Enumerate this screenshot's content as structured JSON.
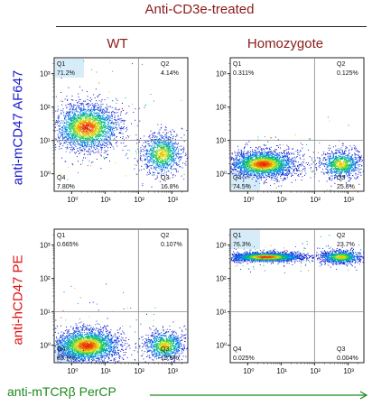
{
  "header": {
    "treatment": "Anti-CD3e-treated",
    "col_left": "WT",
    "col_right": "Homozygote"
  },
  "axis_labels": {
    "y_top": "anti-mCD47 AF647",
    "y_bottom": "anti-hCD47 PE",
    "x": "anti-mTCRβ PerCP"
  },
  "colors": {
    "title": "#8b1a1a",
    "y_top": "#1a1acc",
    "y_bottom": "#e01010",
    "x": "#1e8a1e",
    "arrow": "#1e8a1e",
    "highlight": "#d6ecf8"
  },
  "chart_data": [
    {
      "type": "scatter",
      "panel": "top-left",
      "quadrants": [
        {
          "name": "Q1",
          "value": "71.2%"
        },
        {
          "name": "Q2",
          "value": "4.14%"
        },
        {
          "name": "Q3",
          "value": "16.8%"
        },
        {
          "name": "Q4",
          "value": "7.80%"
        }
      ],
      "gate": {
        "x": 100,
        "y": 10
      },
      "highlighted_quadrant": "Q1",
      "x_ticks": [
        "10⁰",
        "10¹",
        "10²",
        "10³"
      ],
      "y_ticks": [
        "10⁰",
        "10¹",
        "10²",
        "10³"
      ],
      "x_range": [
        0.3,
        3000
      ],
      "y_range": [
        0.3,
        3000
      ],
      "scale": "log",
      "populations": [
        {
          "cx": 2.8,
          "cy": 25,
          "sx": 0.48,
          "sy": 0.34,
          "n": 2600
        },
        {
          "cx": 500,
          "cy": 4,
          "sx": 0.3,
          "sy": 0.3,
          "n": 1100
        }
      ]
    },
    {
      "type": "scatter",
      "panel": "top-right",
      "quadrants": [
        {
          "name": "Q1",
          "value": "0.311%"
        },
        {
          "name": "Q2",
          "value": "0.125%"
        },
        {
          "name": "Q3",
          "value": "25.0%"
        },
        {
          "name": "Q4",
          "value": "74.5%"
        }
      ],
      "gate": {
        "x": 100,
        "y": 10
      },
      "highlighted_quadrant": "Q4",
      "x_ticks": [
        "10⁰",
        "10¹",
        "10²",
        "10³"
      ],
      "y_ticks": [
        "10⁰",
        "10¹",
        "10²",
        "10³"
      ],
      "x_range": [
        0.3,
        3000
      ],
      "y_range": [
        0.3,
        3000
      ],
      "scale": "log",
      "populations": [
        {
          "cx": 2.8,
          "cy": 2.0,
          "sx": 0.5,
          "sy": 0.2,
          "n": 2600
        },
        {
          "cx": 600,
          "cy": 2.0,
          "sx": 0.3,
          "sy": 0.2,
          "n": 1000
        }
      ]
    },
    {
      "type": "scatter",
      "panel": "bottom-left",
      "quadrants": [
        {
          "name": "Q1",
          "value": "0.665%"
        },
        {
          "name": "Q2",
          "value": "0.107%"
        },
        {
          "name": "Q3",
          "value": "15.6%"
        },
        {
          "name": "Q4",
          "value": "83.7%"
        }
      ],
      "gate": {
        "x": 100,
        "y": 10
      },
      "highlighted_quadrant": "Q4",
      "x_ticks": [
        "10⁰",
        "10¹",
        "10²",
        "10³"
      ],
      "y_ticks": [
        "10⁰",
        "10¹",
        "10²",
        "10³"
      ],
      "x_range": [
        0.3,
        3000
      ],
      "y_range": [
        0.3,
        3000
      ],
      "scale": "log",
      "populations": [
        {
          "cx": 2.8,
          "cy": 1.0,
          "sx": 0.5,
          "sy": 0.25,
          "n": 2800
        },
        {
          "cx": 600,
          "cy": 1.0,
          "sx": 0.3,
          "sy": 0.22,
          "n": 1000
        }
      ]
    },
    {
      "type": "scatter",
      "panel": "bottom-right",
      "quadrants": [
        {
          "name": "Q1",
          "value": "76.3%"
        },
        {
          "name": "Q2",
          "value": "23.7%"
        },
        {
          "name": "Q3",
          "value": "0.004%"
        },
        {
          "name": "Q4",
          "value": "0.025%"
        }
      ],
      "gate": {
        "x": 100,
        "y": 10
      },
      "highlighted_quadrant": "Q1",
      "x_ticks": [
        "10⁰",
        "10¹",
        "10²",
        "10³"
      ],
      "y_ticks": [
        "10⁰",
        "10¹",
        "10²",
        "10³"
      ],
      "x_range": [
        0.3,
        3000
      ],
      "y_range": [
        0.3,
        3000
      ],
      "scale": "log",
      "populations": [
        {
          "cx": 3.5,
          "cy": 450,
          "sx": 0.55,
          "sy": 0.07,
          "n": 2300
        },
        {
          "cx": 600,
          "cy": 450,
          "sx": 0.3,
          "sy": 0.1,
          "n": 1000
        }
      ]
    }
  ]
}
